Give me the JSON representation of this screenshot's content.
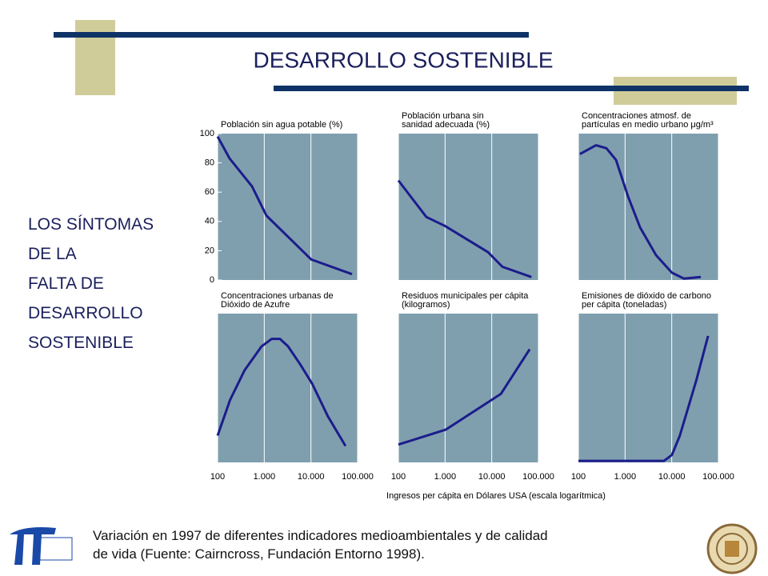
{
  "slide": {
    "title": "DESARROLLO SOSTENIBLE",
    "side_text": [
      "LOS SÍNTOMAS",
      "DE LA",
      "FALTA DE",
      "DESARROLLO",
      "SOSTENIBLE"
    ],
    "x_axis_note": "Ingresos per cápita en Dólares USA (escala logarítmica)",
    "caption": [
      "Variación en 1997 de diferentes indicadores medioambientales y de calidad",
      "de vida (Fuente: Cairncross, Fundación Entorno 1998)."
    ]
  },
  "chart_data": [
    {
      "type": "line",
      "title": [
        "Población sin agua potable (%)"
      ],
      "log_x": true,
      "color": "#1c1c8c",
      "x": [
        100,
        181,
        546,
        1110,
        10160,
        76000
      ],
      "values": [
        98,
        83,
        64,
        44,
        14,
        4
      ],
      "xlim": [
        100,
        100000
      ],
      "xticks": [
        100,
        1000,
        10000,
        100000
      ],
      "ylim": [
        0,
        100
      ],
      "yticks": [
        0,
        20,
        40,
        60,
        80,
        100
      ]
    },
    {
      "type": "line",
      "title": [
        "Población urbana sin",
        "sanidad adecuada (%)"
      ],
      "log_x": true,
      "color": "#1c1c8c",
      "x": [
        100,
        398,
        985,
        8330,
        16900,
        71000
      ],
      "values": [
        68,
        43,
        37,
        19,
        9,
        2
      ],
      "xlim": [
        100,
        100000
      ],
      "xticks": [
        100,
        1000,
        10000,
        100000
      ],
      "ylim": [
        0,
        100
      ]
    },
    {
      "type": "line",
      "title": [
        "Concentraciones atmosf. de",
        "partículas en medio urbano μg/m³"
      ],
      "log_x": true,
      "color": "#1c1c8c",
      "x": [
        108,
        238,
        398,
        639,
        1160,
        2090,
        4600,
        10100,
        18200,
        42000
      ],
      "values": [
        86,
        92,
        90,
        82,
        57,
        36,
        17,
        5,
        1,
        2
      ],
      "xlim": [
        100,
        100000
      ],
      "xticks": [
        100,
        1000,
        10000,
        100000
      ],
      "ylim": [
        0,
        100
      ]
    },
    {
      "type": "line",
      "title": [
        "Concentraciones urbanas de",
        "Dióxido de Azufre"
      ],
      "log_x": true,
      "color": "#1c1c8c",
      "x": [
        100,
        185,
        380,
        877,
        1450,
        2170,
        3220,
        5850,
        10600,
        23000,
        55000
      ],
      "values": [
        18,
        42,
        62,
        78,
        83,
        83,
        78,
        66,
        53,
        31,
        11
      ],
      "xlim": [
        100,
        100000
      ],
      "xticks": [
        100,
        {
          "value": 1000,
          "label": "1.000"
        },
        {
          "value": 10000,
          "label": "10.000"
        },
        {
          "value": 100000,
          "label": "100.000"
        }
      ],
      "ylim": [
        0,
        100
      ]
    },
    {
      "type": "line",
      "title": [
        "Residuos municipales per cápita",
        "(kilogramos)"
      ],
      "log_x": true,
      "color": "#1c1c8c",
      "x": [
        100,
        1030,
        15700,
        65000
      ],
      "values": [
        12,
        22,
        46,
        76
      ],
      "xlim": [
        100,
        100000
      ],
      "xticks": [
        100,
        {
          "value": 1000,
          "label": "1.000"
        },
        {
          "value": 10000,
          "label": "10.000"
        },
        {
          "value": 100000,
          "label": "100.000"
        }
      ],
      "ylim": [
        0,
        100
      ]
    },
    {
      "type": "line",
      "title": [
        "Emisiones de dióxido de carbono",
        "per cápita (toneladas)"
      ],
      "log_x": true,
      "color": "#1c1c8c",
      "x": [
        100,
        6840,
        10100,
        14900,
        33500,
        60000
      ],
      "values": [
        1,
        1,
        5,
        18,
        55,
        85
      ],
      "xlim": [
        100,
        100000
      ],
      "xticks": [
        100,
        {
          "value": 1000,
          "label": "1.000"
        },
        {
          "value": 10000,
          "label": "10.000"
        },
        {
          "value": 100000,
          "label": "100.000"
        }
      ],
      "ylim": [
        0,
        100
      ]
    }
  ]
}
